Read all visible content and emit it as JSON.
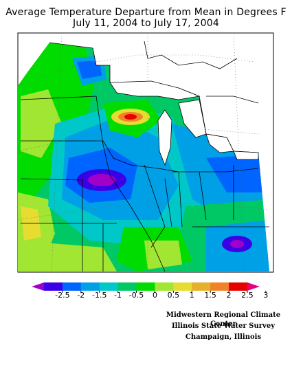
{
  "title": {
    "line1": "Average Temperature Departure from Mean in Degrees F",
    "line2": "July 11, 2004 to July 17, 2004"
  },
  "legend": {
    "ticks": [
      "-2.5",
      "-2",
      "-1.5",
      "-1",
      "-0.5",
      "0",
      "0.5",
      "1",
      "1.5",
      "2",
      "2.5",
      "3"
    ],
    "colors": [
      "#a000c8",
      "#3c00e6",
      "#0064ff",
      "#00a0e6",
      "#00c8c8",
      "#00c864",
      "#00dc00",
      "#a0e632",
      "#e6dc32",
      "#e6af2d",
      "#f08228",
      "#e60000",
      "#e6007d"
    ]
  },
  "credits": {
    "line1": "Midwestern Regional Climate Center",
    "line2": "Illinois State Water Survey",
    "line3": "Champaign, Illinois"
  }
}
